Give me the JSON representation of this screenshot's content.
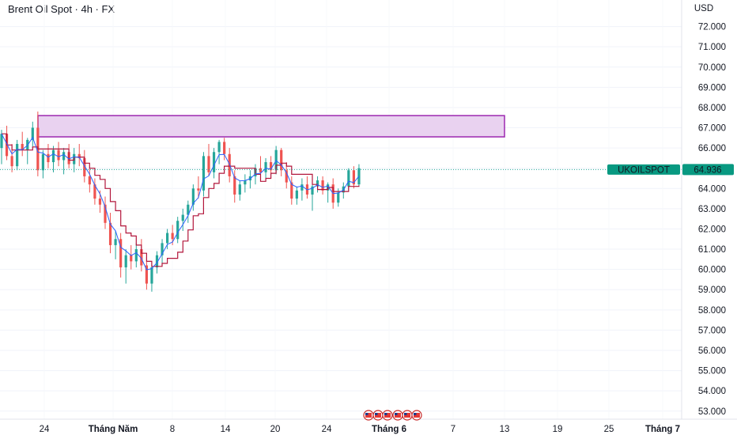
{
  "header": {
    "title": "Brent Oil Spot · 4h · FX"
  },
  "colors": {
    "up": "#26a69a",
    "down": "#ef5350",
    "fast_line": "#2962ff",
    "slow_line": "#b2163b",
    "zone_fill": "#e9d2f0",
    "zone_stroke": "#9c27b0",
    "price_line": "#26a69a",
    "price_label_bg": "#089981"
  },
  "chart_data": {
    "type": "candlestick",
    "currency": "USD",
    "symbol": "UKOILSPOT",
    "last_price": 64.936,
    "last_price_label": "64.936",
    "y_range": [
      52.6,
      73.0
    ],
    "y_ticks": [
      "72.000",
      "71.000",
      "70.000",
      "69.000",
      "68.000",
      "67.000",
      "66.000",
      "65.000",
      "64.000",
      "63.000",
      "62.000",
      "61.000",
      "60.000",
      "59.000",
      "58.000",
      "57.000",
      "56.000",
      "55.000",
      "54.000",
      "53.000"
    ],
    "x_ticks": [
      {
        "label": "24",
        "bold": false
      },
      {
        "label": "Tháng Năm",
        "bold": true
      },
      {
        "label": "8",
        "bold": false
      },
      {
        "label": "14",
        "bold": false
      },
      {
        "label": "20",
        "bold": false
      },
      {
        "label": "24",
        "bold": false
      },
      {
        "label": "Tháng 6",
        "bold": true
      },
      {
        "label": "7",
        "bold": false
      },
      {
        "label": "13",
        "bold": false
      },
      {
        "label": "19",
        "bold": false
      },
      {
        "label": "25",
        "bold": false
      },
      {
        "label": "Tháng 7",
        "bold": true
      }
    ],
    "zone": {
      "high": 67.6,
      "low": 66.55
    },
    "candles": [
      [
        66.0,
        66.9,
        65.2,
        66.7
      ],
      [
        66.7,
        67.1,
        65.4,
        65.6
      ],
      [
        65.6,
        66.2,
        64.8,
        65.1
      ],
      [
        65.1,
        66.4,
        64.9,
        66.2
      ],
      [
        66.2,
        66.8,
        65.6,
        65.9
      ],
      [
        65.9,
        66.5,
        65.2,
        66.4
      ],
      [
        66.4,
        67.3,
        66.0,
        67.0
      ],
      [
        67.0,
        67.8,
        64.6,
        64.9
      ],
      [
        64.9,
        65.9,
        64.5,
        65.7
      ],
      [
        65.7,
        66.2,
        65.0,
        65.3
      ],
      [
        65.3,
        66.1,
        64.8,
        65.9
      ],
      [
        65.9,
        66.3,
        65.1,
        65.4
      ],
      [
        65.4,
        66.0,
        64.7,
        65.8
      ],
      [
        65.8,
        66.2,
        65.0,
        65.2
      ],
      [
        65.2,
        66.0,
        64.8,
        65.7
      ],
      [
        65.7,
        66.2,
        65.1,
        65.5
      ],
      [
        65.5,
        65.9,
        64.3,
        64.6
      ],
      [
        64.6,
        65.0,
        63.8,
        64.2
      ],
      [
        64.2,
        64.5,
        63.2,
        63.5
      ],
      [
        63.5,
        63.9,
        62.8,
        63.2
      ],
      [
        63.2,
        63.6,
        62.0,
        62.3
      ],
      [
        62.3,
        62.8,
        60.8,
        61.2
      ],
      [
        61.2,
        61.9,
        60.5,
        61.5
      ],
      [
        61.5,
        61.8,
        59.6,
        60.1
      ],
      [
        60.1,
        61.0,
        59.3,
        60.7
      ],
      [
        60.7,
        61.2,
        60.0,
        60.4
      ],
      [
        60.4,
        61.3,
        60.1,
        61.0
      ],
      [
        61.0,
        61.5,
        59.9,
        60.2
      ],
      [
        60.2,
        60.6,
        59.0,
        59.3
      ],
      [
        59.3,
        60.3,
        58.9,
        60.1
      ],
      [
        60.1,
        60.9,
        59.8,
        60.7
      ],
      [
        60.7,
        61.5,
        60.3,
        61.3
      ],
      [
        61.3,
        62.0,
        61.0,
        61.8
      ],
      [
        61.8,
        62.2,
        61.2,
        61.5
      ],
      [
        61.5,
        62.6,
        61.3,
        62.4
      ],
      [
        62.4,
        63.0,
        61.9,
        62.7
      ],
      [
        62.7,
        63.4,
        62.3,
        63.2
      ],
      [
        63.2,
        64.2,
        62.9,
        64.0
      ],
      [
        64.0,
        64.6,
        63.5,
        63.9
      ],
      [
        63.9,
        65.8,
        63.6,
        65.6
      ],
      [
        65.6,
        66.2,
        64.6,
        64.8
      ],
      [
        64.8,
        66.0,
        64.5,
        65.8
      ],
      [
        65.8,
        66.4,
        65.2,
        66.3
      ],
      [
        66.3,
        66.5,
        65.4,
        65.7
      ],
      [
        65.7,
        66.0,
        64.3,
        64.6
      ],
      [
        64.6,
        64.9,
        63.3,
        63.7
      ],
      [
        63.7,
        64.4,
        63.4,
        64.2
      ],
      [
        64.2,
        64.7,
        63.8,
        64.4
      ],
      [
        64.4,
        64.9,
        64.0,
        64.6
      ],
      [
        64.6,
        65.2,
        64.2,
        65.0
      ],
      [
        65.0,
        65.6,
        64.5,
        64.8
      ],
      [
        64.8,
        65.5,
        64.4,
        65.3
      ],
      [
        65.3,
        65.6,
        64.7,
        64.9
      ],
      [
        64.9,
        66.1,
        64.7,
        65.9
      ],
      [
        65.9,
        66.0,
        64.6,
        64.9
      ],
      [
        64.9,
        65.3,
        64.0,
        64.3
      ],
      [
        64.3,
        64.6,
        63.2,
        63.5
      ],
      [
        63.5,
        64.1,
        63.2,
        63.9
      ],
      [
        63.9,
        64.5,
        63.4,
        64.2
      ],
      [
        64.2,
        64.6,
        63.5,
        63.7
      ],
      [
        63.7,
        64.3,
        62.9,
        64.1
      ],
      [
        64.1,
        64.6,
        63.8,
        64.4
      ],
      [
        64.4,
        64.6,
        63.7,
        63.9
      ],
      [
        63.9,
        64.3,
        63.3,
        64.2
      ],
      [
        64.2,
        64.5,
        63.0,
        63.3
      ],
      [
        63.3,
        64.0,
        63.1,
        63.8
      ],
      [
        63.8,
        64.3,
        63.5,
        64.1
      ],
      [
        64.1,
        65.0,
        63.9,
        64.9
      ],
      [
        64.9,
        65.1,
        64.0,
        64.2
      ],
      [
        64.2,
        65.2,
        64.1,
        65.0
      ]
    ]
  }
}
